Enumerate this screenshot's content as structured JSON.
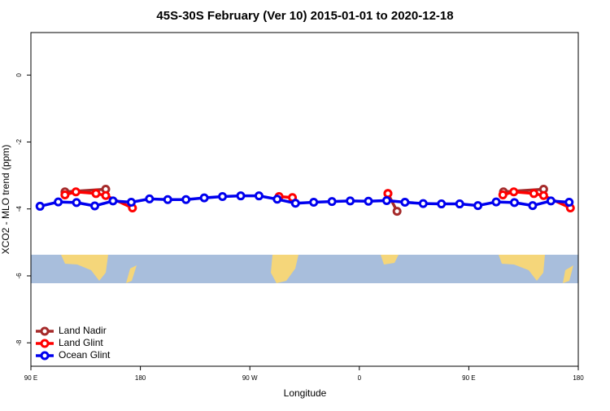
{
  "chart_data": {
    "type": "line",
    "title": "45S-30S February (Ver 10)   2015-01-01 to 2020-12-18",
    "x_label": "Longitude",
    "y_label": "XCO2 - MLO trend (ppm)",
    "xlim": [
      90,
      540
    ],
    "xticks": [
      {
        "value": 90,
        "label": "90 E"
      },
      {
        "value": 180,
        "label": "180"
      },
      {
        "value": 270,
        "label": "90 W"
      },
      {
        "value": 360,
        "label": "0"
      },
      {
        "value": 450,
        "label": "90 E"
      },
      {
        "value": 540,
        "label": "180"
      }
    ],
    "ylim": [
      -8.7,
      1.27
    ],
    "yticks": [
      0,
      -2,
      -4,
      -6,
      -8
    ],
    "legend": "lower left",
    "series": [
      {
        "name": "Land Nadir",
        "color": "#a52a2a",
        "x": [
          118,
          151.5,
          null,
          383.5,
          391,
          null,
          478.5,
          511.5
        ],
        "values": [
          -3.49,
          -3.41,
          null,
          -3.54,
          -4.07,
          null,
          -3.49,
          -3.41
        ]
      },
      {
        "name": "Land Glint",
        "color": "#ff0000",
        "x": [
          118,
          127,
          143.5,
          151.5,
          173.5,
          null,
          294,
          305,
          null,
          383.5,
          null,
          478,
          487,
          503.5,
          511.5,
          533.5
        ],
        "values": [
          -3.58,
          -3.49,
          -3.54,
          -3.6,
          -3.97,
          null,
          -3.63,
          -3.66,
          null,
          -3.54,
          null,
          -3.58,
          -3.49,
          -3.54,
          -3.6,
          -3.97
        ]
      },
      {
        "name": "Ocean Glint",
        "color": "#0000ee",
        "x": [
          97.5,
          112.5,
          127.5,
          142.5,
          157.5,
          172.5,
          187.5,
          202.5,
          217.5,
          232.5,
          247.5,
          262.5,
          277.5,
          292.5,
          307.5,
          322.5,
          337.5,
          352.5,
          367.5,
          382.5,
          397.5,
          412.5,
          427.5,
          442.5,
          457.5,
          472.5,
          487.5,
          502.5,
          517.5,
          532.5
        ],
        "values": [
          -3.92,
          -3.79,
          -3.81,
          -3.91,
          -3.76,
          -3.8,
          -3.7,
          -3.72,
          -3.72,
          -3.67,
          -3.63,
          -3.61,
          -3.61,
          -3.71,
          -3.83,
          -3.8,
          -3.78,
          -3.76,
          -3.77,
          -3.75,
          -3.8,
          -3.84,
          -3.85,
          -3.85,
          -3.9,
          -3.79,
          -3.81,
          -3.9,
          -3.76,
          -3.8
        ]
      }
    ]
  }
}
